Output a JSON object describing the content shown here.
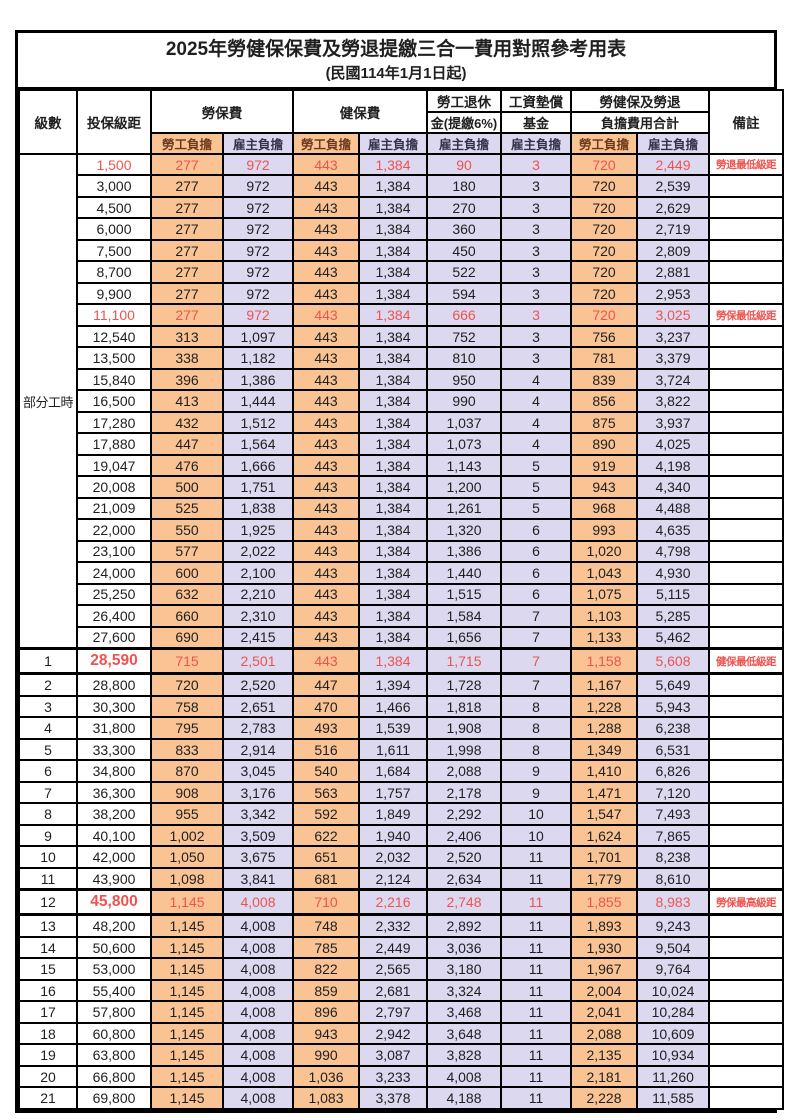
{
  "document": {
    "title": "2025年勞健保保費及勞退提繳三合一費用對照參考用表",
    "subtitle": "(民國114年1月1日起)"
  },
  "colors": {
    "employee_column_bg": "#FAC394",
    "employer_column_bg": "#DBD8EF",
    "highlight_text": "#EF5350",
    "grid_border": "#000000",
    "employee_header_text": "#6E3A1E",
    "employer_header_text": "#33334A"
  },
  "table": {
    "header": {
      "level": "級數",
      "bracket": "投保級距",
      "labor_insurance": "勞保費",
      "health_insurance": "健保費",
      "pension_line1": "勞工退休",
      "pension_line2": "金(提繳6%)",
      "wage_fund_line1": "工資墊償",
      "wage_fund_line2": "基金",
      "total_line1": "勞健保及勞退",
      "total_line2": "負擔費用合計",
      "remark": "備註",
      "employee_burden": "勞工負擔",
      "employer_burden": "雇主負擔"
    },
    "part_time_label": "部分工時",
    "part_time_rowspan": 23,
    "value_column_pattern": [
      "emp",
      "er",
      "emp",
      "er",
      "er",
      "er",
      "emp",
      "er"
    ],
    "rows": [
      {
        "level": null,
        "bracket": "1,500",
        "values": [
          "277",
          "972",
          "443",
          "1,384",
          "90",
          "3",
          "720",
          "2,449"
        ],
        "remark": "勞退最低級距",
        "highlight": true,
        "bold": false
      },
      {
        "level": null,
        "bracket": "3,000",
        "values": [
          "277",
          "972",
          "443",
          "1,384",
          "180",
          "3",
          "720",
          "2,539"
        ],
        "remark": "",
        "highlight": false,
        "bold": false
      },
      {
        "level": null,
        "bracket": "4,500",
        "values": [
          "277",
          "972",
          "443",
          "1,384",
          "270",
          "3",
          "720",
          "2,629"
        ],
        "remark": "",
        "highlight": false,
        "bold": false
      },
      {
        "level": null,
        "bracket": "6,000",
        "values": [
          "277",
          "972",
          "443",
          "1,384",
          "360",
          "3",
          "720",
          "2,719"
        ],
        "remark": "",
        "highlight": false,
        "bold": false
      },
      {
        "level": null,
        "bracket": "7,500",
        "values": [
          "277",
          "972",
          "443",
          "1,384",
          "450",
          "3",
          "720",
          "2,809"
        ],
        "remark": "",
        "highlight": false,
        "bold": false
      },
      {
        "level": null,
        "bracket": "8,700",
        "values": [
          "277",
          "972",
          "443",
          "1,384",
          "522",
          "3",
          "720",
          "2,881"
        ],
        "remark": "",
        "highlight": false,
        "bold": false
      },
      {
        "level": null,
        "bracket": "9,900",
        "values": [
          "277",
          "972",
          "443",
          "1,384",
          "594",
          "3",
          "720",
          "2,953"
        ],
        "remark": "",
        "highlight": false,
        "bold": false
      },
      {
        "level": null,
        "bracket": "11,100",
        "values": [
          "277",
          "972",
          "443",
          "1,384",
          "666",
          "3",
          "720",
          "3,025"
        ],
        "remark": "勞保最低級距",
        "highlight": true,
        "bold": false
      },
      {
        "level": null,
        "bracket": "12,540",
        "values": [
          "313",
          "1,097",
          "443",
          "1,384",
          "752",
          "3",
          "756",
          "3,237"
        ],
        "remark": "",
        "highlight": false,
        "bold": false
      },
      {
        "level": null,
        "bracket": "13,500",
        "values": [
          "338",
          "1,182",
          "443",
          "1,384",
          "810",
          "3",
          "781",
          "3,379"
        ],
        "remark": "",
        "highlight": false,
        "bold": false
      },
      {
        "level": null,
        "bracket": "15,840",
        "values": [
          "396",
          "1,386",
          "443",
          "1,384",
          "950",
          "4",
          "839",
          "3,724"
        ],
        "remark": "",
        "highlight": false,
        "bold": false
      },
      {
        "level": null,
        "bracket": "16,500",
        "values": [
          "413",
          "1,444",
          "443",
          "1,384",
          "990",
          "4",
          "856",
          "3,822"
        ],
        "remark": "",
        "highlight": false,
        "bold": false
      },
      {
        "level": null,
        "bracket": "17,280",
        "values": [
          "432",
          "1,512",
          "443",
          "1,384",
          "1,037",
          "4",
          "875",
          "3,937"
        ],
        "remark": "",
        "highlight": false,
        "bold": false
      },
      {
        "level": null,
        "bracket": "17,880",
        "values": [
          "447",
          "1,564",
          "443",
          "1,384",
          "1,073",
          "4",
          "890",
          "4,025"
        ],
        "remark": "",
        "highlight": false,
        "bold": false
      },
      {
        "level": null,
        "bracket": "19,047",
        "values": [
          "476",
          "1,666",
          "443",
          "1,384",
          "1,143",
          "5",
          "919",
          "4,198"
        ],
        "remark": "",
        "highlight": false,
        "bold": false
      },
      {
        "level": null,
        "bracket": "20,008",
        "values": [
          "500",
          "1,751",
          "443",
          "1,384",
          "1,200",
          "5",
          "943",
          "4,340"
        ],
        "remark": "",
        "highlight": false,
        "bold": false
      },
      {
        "level": null,
        "bracket": "21,009",
        "values": [
          "525",
          "1,838",
          "443",
          "1,384",
          "1,261",
          "5",
          "968",
          "4,488"
        ],
        "remark": "",
        "highlight": false,
        "bold": false
      },
      {
        "level": null,
        "bracket": "22,000",
        "values": [
          "550",
          "1,925",
          "443",
          "1,384",
          "1,320",
          "6",
          "993",
          "4,635"
        ],
        "remark": "",
        "highlight": false,
        "bold": false
      },
      {
        "level": null,
        "bracket": "23,100",
        "values": [
          "577",
          "2,022",
          "443",
          "1,384",
          "1,386",
          "6",
          "1,020",
          "4,798"
        ],
        "remark": "",
        "highlight": false,
        "bold": false
      },
      {
        "level": null,
        "bracket": "24,000",
        "values": [
          "600",
          "2,100",
          "443",
          "1,384",
          "1,440",
          "6",
          "1,043",
          "4,930"
        ],
        "remark": "",
        "highlight": false,
        "bold": false
      },
      {
        "level": null,
        "bracket": "25,250",
        "values": [
          "632",
          "2,210",
          "443",
          "1,384",
          "1,515",
          "6",
          "1,075",
          "5,115"
        ],
        "remark": "",
        "highlight": false,
        "bold": false
      },
      {
        "level": null,
        "bracket": "26,400",
        "values": [
          "660",
          "2,310",
          "443",
          "1,384",
          "1,584",
          "7",
          "1,103",
          "5,285"
        ],
        "remark": "",
        "highlight": false,
        "bold": false
      },
      {
        "level": null,
        "bracket": "27,600",
        "values": [
          "690",
          "2,415",
          "443",
          "1,384",
          "1,656",
          "7",
          "1,133",
          "5,462"
        ],
        "remark": "",
        "highlight": false,
        "bold": false
      },
      {
        "level": "1",
        "bracket": "28,590",
        "values": [
          "715",
          "2,501",
          "443",
          "1,384",
          "1,715",
          "7",
          "1,158",
          "5,608"
        ],
        "remark": "健保最低級距",
        "highlight": true,
        "bold": true
      },
      {
        "level": "2",
        "bracket": "28,800",
        "values": [
          "720",
          "2,520",
          "447",
          "1,394",
          "1,728",
          "7",
          "1,167",
          "5,649"
        ],
        "remark": "",
        "highlight": false,
        "bold": false
      },
      {
        "level": "3",
        "bracket": "30,300",
        "values": [
          "758",
          "2,651",
          "470",
          "1,466",
          "1,818",
          "8",
          "1,228",
          "5,943"
        ],
        "remark": "",
        "highlight": false,
        "bold": false
      },
      {
        "level": "4",
        "bracket": "31,800",
        "values": [
          "795",
          "2,783",
          "493",
          "1,539",
          "1,908",
          "8",
          "1,288",
          "6,238"
        ],
        "remark": "",
        "highlight": false,
        "bold": false
      },
      {
        "level": "5",
        "bracket": "33,300",
        "values": [
          "833",
          "2,914",
          "516",
          "1,611",
          "1,998",
          "8",
          "1,349",
          "6,531"
        ],
        "remark": "",
        "highlight": false,
        "bold": false
      },
      {
        "level": "6",
        "bracket": "34,800",
        "values": [
          "870",
          "3,045",
          "540",
          "1,684",
          "2,088",
          "9",
          "1,410",
          "6,826"
        ],
        "remark": "",
        "highlight": false,
        "bold": false
      },
      {
        "level": "7",
        "bracket": "36,300",
        "values": [
          "908",
          "3,176",
          "563",
          "1,757",
          "2,178",
          "9",
          "1,471",
          "7,120"
        ],
        "remark": "",
        "highlight": false,
        "bold": false
      },
      {
        "level": "8",
        "bracket": "38,200",
        "values": [
          "955",
          "3,342",
          "592",
          "1,849",
          "2,292",
          "10",
          "1,547",
          "7,493"
        ],
        "remark": "",
        "highlight": false,
        "bold": false
      },
      {
        "level": "9",
        "bracket": "40,100",
        "values": [
          "1,002",
          "3,509",
          "622",
          "1,940",
          "2,406",
          "10",
          "1,624",
          "7,865"
        ],
        "remark": "",
        "highlight": false,
        "bold": false
      },
      {
        "level": "10",
        "bracket": "42,000",
        "values": [
          "1,050",
          "3,675",
          "651",
          "2,032",
          "2,520",
          "11",
          "1,701",
          "8,238"
        ],
        "remark": "",
        "highlight": false,
        "bold": false
      },
      {
        "level": "11",
        "bracket": "43,900",
        "values": [
          "1,098",
          "3,841",
          "681",
          "2,124",
          "2,634",
          "11",
          "1,779",
          "8,610"
        ],
        "remark": "",
        "highlight": false,
        "bold": false
      },
      {
        "level": "12",
        "bracket": "45,800",
        "values": [
          "1,145",
          "4,008",
          "710",
          "2,216",
          "2,748",
          "11",
          "1,855",
          "8,983"
        ],
        "remark": "勞保最高級距",
        "highlight": true,
        "bold": true
      },
      {
        "level": "13",
        "bracket": "48,200",
        "values": [
          "1,145",
          "4,008",
          "748",
          "2,332",
          "2,892",
          "11",
          "1,893",
          "9,243"
        ],
        "remark": "",
        "highlight": false,
        "bold": false
      },
      {
        "level": "14",
        "bracket": "50,600",
        "values": [
          "1,145",
          "4,008",
          "785",
          "2,449",
          "3,036",
          "11",
          "1,930",
          "9,504"
        ],
        "remark": "",
        "highlight": false,
        "bold": false
      },
      {
        "level": "15",
        "bracket": "53,000",
        "values": [
          "1,145",
          "4,008",
          "822",
          "2,565",
          "3,180",
          "11",
          "1,967",
          "9,764"
        ],
        "remark": "",
        "highlight": false,
        "bold": false
      },
      {
        "level": "16",
        "bracket": "55,400",
        "values": [
          "1,145",
          "4,008",
          "859",
          "2,681",
          "3,324",
          "11",
          "2,004",
          "10,024"
        ],
        "remark": "",
        "highlight": false,
        "bold": false
      },
      {
        "level": "17",
        "bracket": "57,800",
        "values": [
          "1,145",
          "4,008",
          "896",
          "2,797",
          "3,468",
          "11",
          "2,041",
          "10,284"
        ],
        "remark": "",
        "highlight": false,
        "bold": false
      },
      {
        "level": "18",
        "bracket": "60,800",
        "values": [
          "1,145",
          "4,008",
          "943",
          "2,942",
          "3,648",
          "11",
          "2,088",
          "10,609"
        ],
        "remark": "",
        "highlight": false,
        "bold": false
      },
      {
        "level": "19",
        "bracket": "63,800",
        "values": [
          "1,145",
          "4,008",
          "990",
          "3,087",
          "3,828",
          "11",
          "2,135",
          "10,934"
        ],
        "remark": "",
        "highlight": false,
        "bold": false
      },
      {
        "level": "20",
        "bracket": "66,800",
        "values": [
          "1,145",
          "4,008",
          "1,036",
          "3,233",
          "4,008",
          "11",
          "2,181",
          "11,260"
        ],
        "remark": "",
        "highlight": false,
        "bold": false
      },
      {
        "level": "21",
        "bracket": "69,800",
        "values": [
          "1,145",
          "4,008",
          "1,083",
          "3,378",
          "4,188",
          "11",
          "2,228",
          "11,585"
        ],
        "remark": "",
        "highlight": false,
        "bold": false
      }
    ]
  }
}
